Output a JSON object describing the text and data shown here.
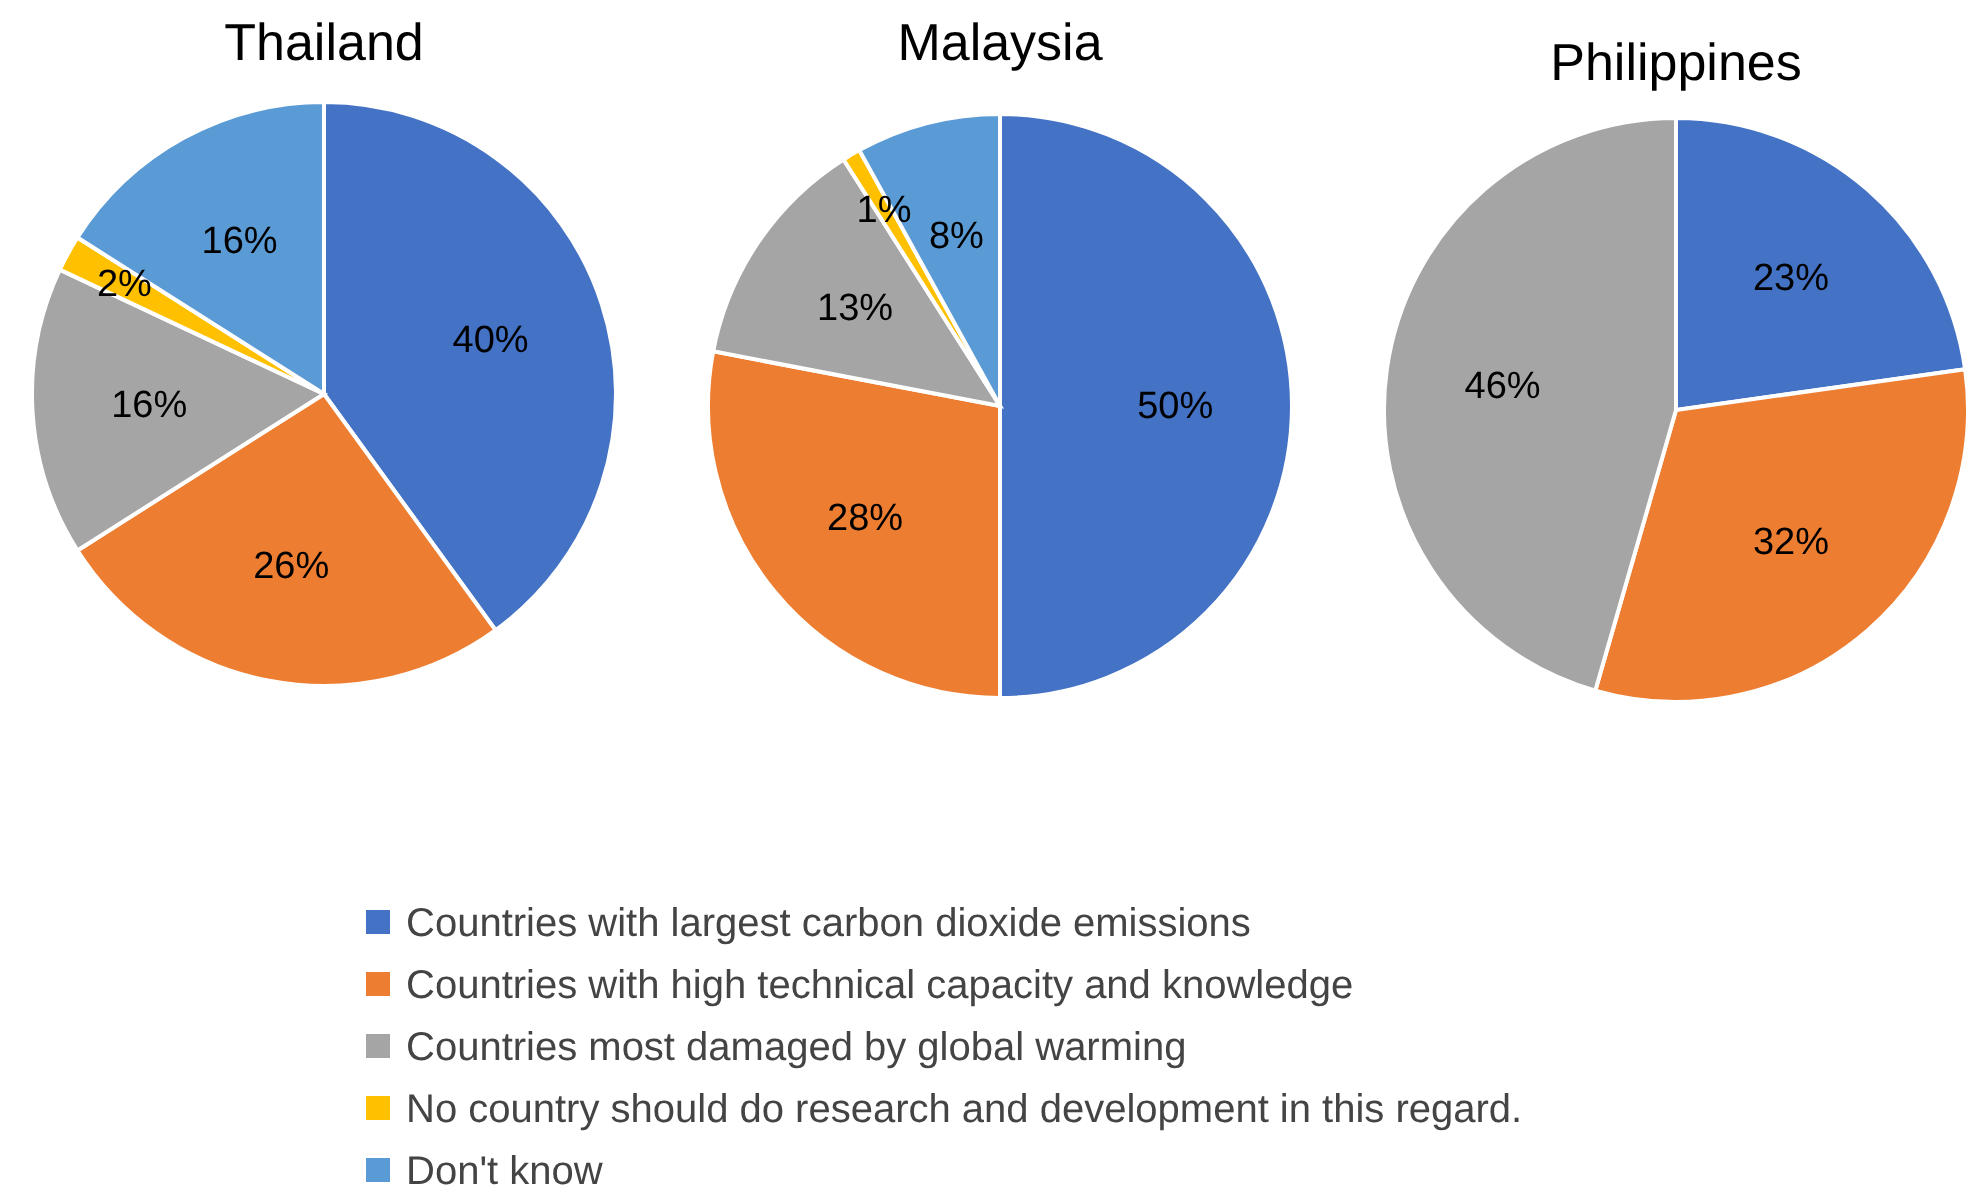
{
  "chart_data": [
    {
      "type": "pie",
      "title": "Thailand",
      "categories": [
        "Countries with largest carbon dioxide emissions",
        "Countries with high technical capacity and knowledge",
        "Countries most damaged by global warming",
        "No country should do research and development in this regard.",
        "Don't know"
      ],
      "values": [
        40,
        26,
        16,
        2,
        16
      ],
      "value_labels": [
        "40%",
        "26%",
        "16%",
        "2%",
        "16%"
      ],
      "colors": [
        "#4472c4",
        "#ed7d31",
        "#a5a5a5",
        "#ffc000",
        "#5b9bd5"
      ],
      "legend": "bottom"
    },
    {
      "type": "pie",
      "title": "Malaysia",
      "categories": [
        null,
        null,
        null,
        null,
        null
      ],
      "values": [
        50,
        28,
        13,
        1,
        8
      ],
      "value_labels": [
        "50%",
        "28%",
        "13%",
        "1%",
        "8%"
      ],
      "colors": [
        "#4472c4",
        "#ed7d31",
        "#a5a5a5",
        "#ffc000",
        "#5b9bd5"
      ]
    },
    {
      "type": "pie",
      "title": "Philippines",
      "categories": [
        null,
        null,
        null
      ],
      "values": [
        23,
        32,
        46
      ],
      "value_labels": [
        "23%",
        "32%",
        "46%"
      ],
      "colors": [
        "#4472c4",
        "#ed7d31",
        "#a5a5a5"
      ]
    }
  ]
}
